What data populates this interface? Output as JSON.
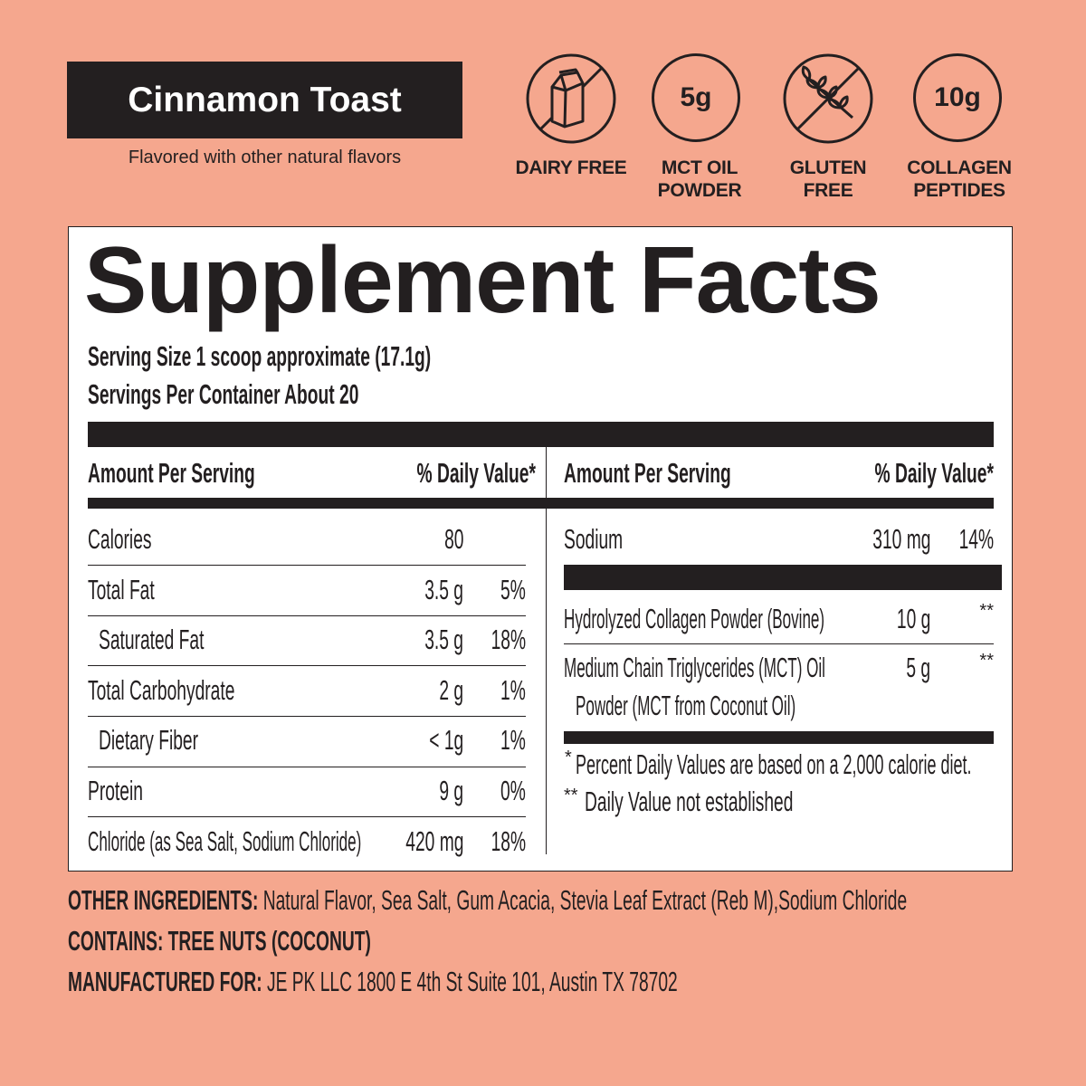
{
  "header": {
    "flavor": "Cinnamon Toast",
    "subtitle": "Flavored with other natural flavors"
  },
  "badges": [
    {
      "icon": "milk-carton-crossed-icon",
      "text": "",
      "label1": "DAIRY FREE",
      "label2": ""
    },
    {
      "icon": "circle",
      "text": "5g",
      "label1": "MCT OIL",
      "label2": "POWDER"
    },
    {
      "icon": "wheat-crossed-icon",
      "text": "",
      "label1": "GLUTEN",
      "label2": "FREE"
    },
    {
      "icon": "circle",
      "text": "10g",
      "label1": "COLLAGEN",
      "label2": "PEPTIDES"
    }
  ],
  "facts": {
    "title": "Supplement Facts",
    "serving_size": "Serving Size 1 scoop approximate (17.1g)",
    "servings_per_container": "Servings Per Container About 20",
    "col_amount": "Amount Per Serving",
    "col_dv": "% Daily Value*",
    "left_rows": [
      {
        "name": "Calories",
        "amount": "80",
        "dv": ""
      },
      {
        "name": "Total Fat",
        "amount": "3.5 g",
        "dv": "5%"
      },
      {
        "name": "Saturated Fat",
        "amount": "3.5 g",
        "dv": "18%"
      },
      {
        "name": "Total Carbohydrate",
        "amount": "2 g",
        "dv": "1%"
      },
      {
        "name": "Dietary Fiber",
        "amount": "< 1g",
        "dv": "1%"
      },
      {
        "name": "Protein",
        "amount": "9 g",
        "dv": "0%"
      },
      {
        "name": "Chloride (as Sea Salt, Sodium Chloride)",
        "amount": "420 mg",
        "dv": "18%"
      }
    ],
    "sodium": {
      "name": "Sodium",
      "amount": "310 mg",
      "dv": "14%"
    },
    "other_rows": [
      {
        "name": "Hydrolyzed Collagen Powder (Bovine)",
        "amount": "10 g",
        "dv": "**"
      },
      {
        "name": "Medium Chain Triglycerides (MCT) Oil",
        "name2": "Powder (MCT from Coconut Oil)",
        "amount": "5 g",
        "dv": "**"
      }
    ],
    "footnote1_mark": "*",
    "footnote1": "Percent Daily Values are based on a 2,000 calorie diet.",
    "footnote2_mark": "**",
    "footnote2": "Daily Value not established"
  },
  "bottom": {
    "other_label": "OTHER INGREDIENTS:",
    "other_text": "Natural Flavor, Sea Salt, Gum Acacia, Stevia Leaf Extract (Reb M),Sodium Chloride",
    "contains": "CONTAINS: TREE NUTS (COCONUT)",
    "mfg_label": "MANUFACTURED FOR:",
    "mfg_text": "JE PK LLC 1800 E 4th St Suite 101, Austin TX 78702"
  },
  "colors": {
    "background": "#F5A78E",
    "ink": "#231F20",
    "panel": "#FFFFFF"
  }
}
